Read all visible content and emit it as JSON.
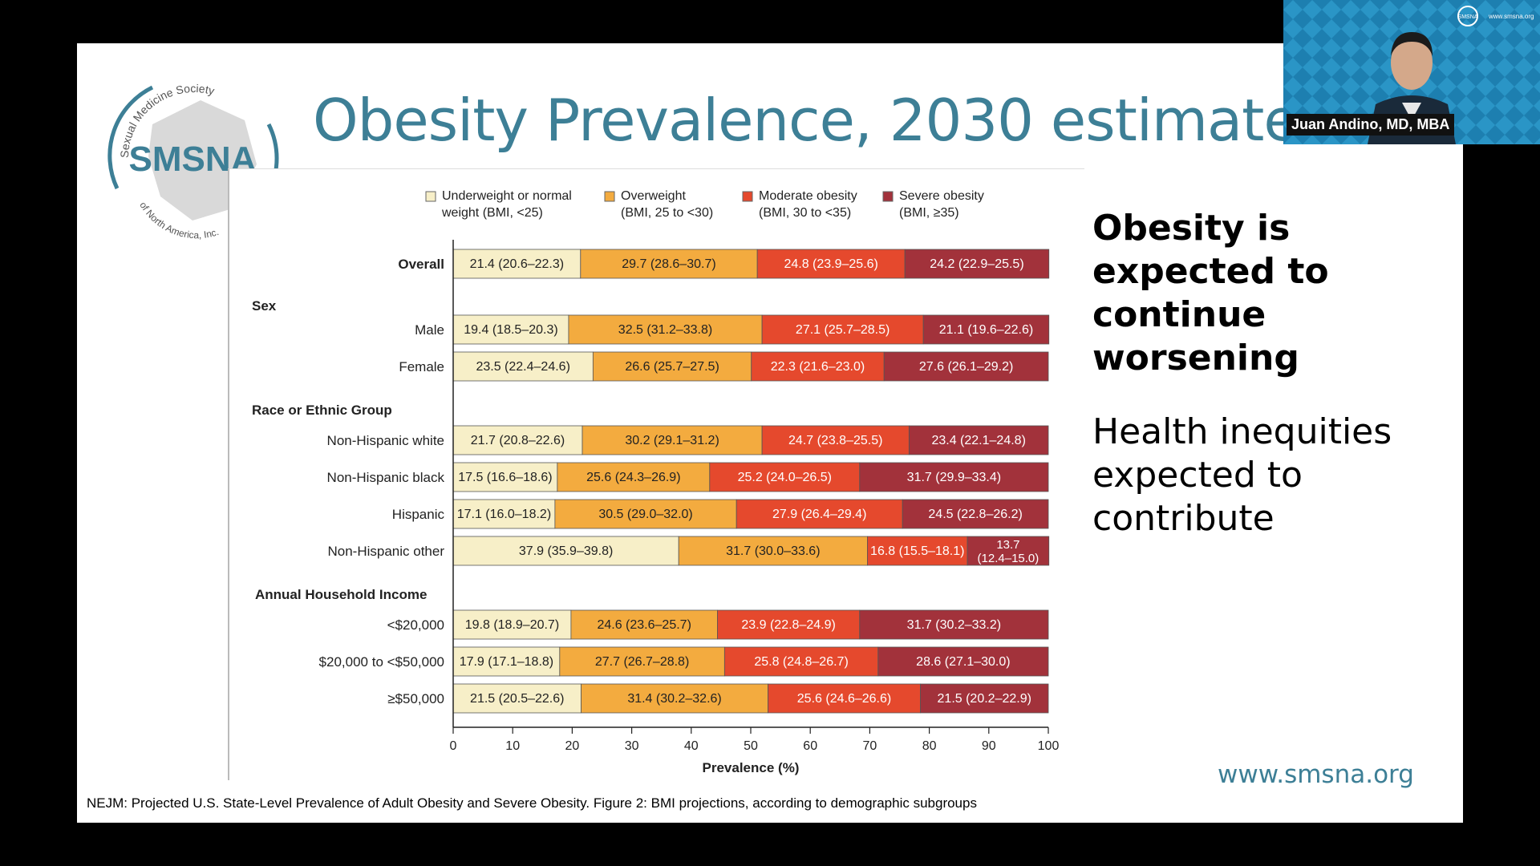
{
  "slide": {
    "title": "Obesity Prevalence, 2030 estimates",
    "logo_text": "SMSNA",
    "logo_arc_top": "Sexual Medicine Society",
    "logo_arc_bottom": "of North America, Inc.",
    "side_bold": "Obesity is expected to continue worsening",
    "side_normal": "Health inequities expected to contribute",
    "url": "www.smsna.org",
    "caption": "NEJM: Projected U.S. State-Level Prevalence of Adult Obesity and Severe Obesity. Figure 2: BMI projections, according to demographic subgroups"
  },
  "video": {
    "speaker_name": "Juan Andino, MD, MBA",
    "watermark_url": "www.smsna.org",
    "watermark_logo": "SMSNA"
  },
  "chart_data": {
    "type": "bar",
    "stacked": true,
    "orientation": "horizontal",
    "xlabel": "Prevalence (%)",
    "xlim": [
      0,
      100
    ],
    "xticks": [
      0,
      10,
      20,
      30,
      40,
      50,
      60,
      70,
      80,
      90,
      100
    ],
    "legend": [
      {
        "line1": "Underweight or normal",
        "line2": "weight (BMI, <25)",
        "color": "#f7efc8"
      },
      {
        "line1": "Overweight",
        "line2": "(BMI, 25 to <30)",
        "color": "#f3ab3f"
      },
      {
        "line1": "Moderate obesity",
        "line2": "(BMI, 30 to <35)",
        "color": "#e5492d"
      },
      {
        "line1": "Severe obesity",
        "line2": "(BMI, ≥35)",
        "color": "#a2323b"
      }
    ],
    "groups": [
      {
        "name": "",
        "rows": [
          {
            "label": "Overall",
            "bold": true,
            "values": [
              21.4,
              29.7,
              24.8,
              24.2
            ],
            "labels": [
              "21.4 (20.6–22.3)",
              "29.7 (28.6–30.7)",
              "24.8 (23.9–25.6)",
              "24.2 (22.9–25.5)"
            ]
          }
        ]
      },
      {
        "name": "Sex",
        "rows": [
          {
            "label": "Male",
            "values": [
              19.4,
              32.5,
              27.1,
              21.1
            ],
            "labels": [
              "19.4 (18.5–20.3)",
              "32.5 (31.2–33.8)",
              "27.1 (25.7–28.5)",
              "21.1 (19.6–22.6)"
            ]
          },
          {
            "label": "Female",
            "values": [
              23.5,
              26.6,
              22.3,
              27.6
            ],
            "labels": [
              "23.5 (22.4–24.6)",
              "26.6 (25.7–27.5)",
              "22.3 (21.6–23.0)",
              "27.6 (26.1–29.2)"
            ]
          }
        ]
      },
      {
        "name": "Race or Ethnic Group",
        "rows": [
          {
            "label": "Non-Hispanic white",
            "values": [
              21.7,
              30.2,
              24.7,
              23.4
            ],
            "labels": [
              "21.7 (20.8–22.6)",
              "30.2 (29.1–31.2)",
              "24.7 (23.8–25.5)",
              "23.4 (22.1–24.8)"
            ]
          },
          {
            "label": "Non-Hispanic black",
            "values": [
              17.5,
              25.6,
              25.2,
              31.7
            ],
            "labels": [
              "17.5 (16.6–18.6)",
              "25.6 (24.3–26.9)",
              "25.2 (24.0–26.5)",
              "31.7 (29.9–33.4)"
            ]
          },
          {
            "label": "Hispanic",
            "values": [
              17.1,
              30.5,
              27.9,
              24.5
            ],
            "labels": [
              "17.1 (16.0–18.2)",
              "30.5 (29.0–32.0)",
              "27.9 (26.4–29.4)",
              "24.5 (22.8–26.2)"
            ]
          },
          {
            "label": "Non-Hispanic other",
            "values": [
              37.9,
              31.7,
              16.8,
              13.7
            ],
            "labels": [
              "37.9 (35.9–39.8)",
              "31.7 (30.0–33.6)",
              "16.8 (15.5–18.1)",
              "13.7 (12.4–15.0)"
            ]
          }
        ]
      },
      {
        "name": "Annual Household Income",
        "rows": [
          {
            "label": "<$20,000",
            "values": [
              19.8,
              24.6,
              23.9,
              31.7
            ],
            "labels": [
              "19.8 (18.9–20.7)",
              "24.6 (23.6–25.7)",
              "23.9 (22.8–24.9)",
              "31.7 (30.2–33.2)"
            ]
          },
          {
            "label": "$20,000 to <$50,000",
            "values": [
              17.9,
              27.7,
              25.8,
              28.6
            ],
            "labels": [
              "17.9 (17.1–18.8)",
              "27.7 (26.7–28.8)",
              "25.8 (24.8–26.7)",
              "28.6 (27.1–30.0)"
            ]
          },
          {
            "label": "≥$50,000",
            "values": [
              21.5,
              31.4,
              25.6,
              21.5
            ],
            "labels": [
              "21.5 (20.5–22.6)",
              "31.4 (30.2–32.6)",
              "25.6 (24.6–26.6)",
              "21.5 (20.2–22.9)"
            ]
          }
        ]
      }
    ]
  }
}
